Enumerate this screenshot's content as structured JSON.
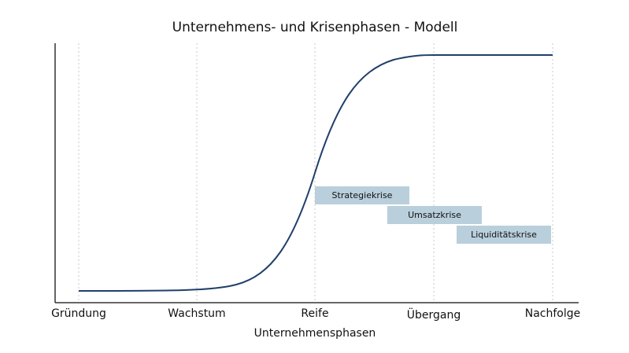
{
  "title": "Unternehmens- und Krisenphasen - Modell",
  "x_axis_label": "Unternehmensphasen",
  "phases": [
    "Gründung",
    "Wachstum",
    "Reife",
    "Übergang",
    "Nachfolge"
  ],
  "crises": [
    "Strategiekrise",
    "Umsatzkrise",
    "Liquiditätskrise"
  ]
}
